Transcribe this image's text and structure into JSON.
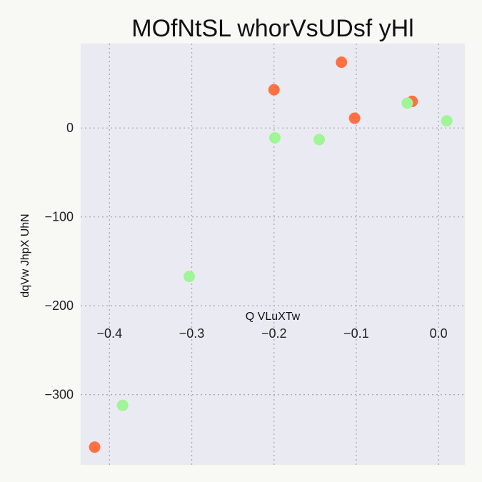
{
  "chart_data": {
    "type": "scatter",
    "title": "MOfNtSL whorVsUDsf yHl",
    "xlabel": "Q  VLuXTw",
    "ylabel": "dqVw JhpX UhN",
    "xlim": [
      -0.435,
      0.032
    ],
    "ylim": [
      -379,
      95
    ],
    "xticks": [
      -0.4,
      -0.3,
      -0.2,
      -0.1,
      0.0
    ],
    "xtick_labels": [
      "−0.4",
      "−0.3",
      "−0.2",
      "−0.1",
      "0.0"
    ],
    "yticks": [
      0,
      -100,
      -200,
      -300
    ],
    "ytick_labels": [
      "0",
      "−100",
      "−200",
      "−300"
    ],
    "grid": true,
    "background": "#eaeaf2",
    "series": [
      {
        "color": "#ff7043",
        "points": [
          {
            "x": -0.418,
            "y": -359
          },
          {
            "x": -0.2,
            "y": 43
          },
          {
            "x": -0.118,
            "y": 74
          },
          {
            "x": -0.102,
            "y": 11
          },
          {
            "x": -0.032,
            "y": 30
          }
        ]
      },
      {
        "color": "#a0f598",
        "points": [
          {
            "x": -0.384,
            "y": -312
          },
          {
            "x": -0.303,
            "y": -167
          },
          {
            "x": -0.199,
            "y": -11
          },
          {
            "x": -0.145,
            "y": -13
          },
          {
            "x": -0.038,
            "y": 28
          },
          {
            "x": 0.01,
            "y": 8
          }
        ]
      }
    ]
  }
}
